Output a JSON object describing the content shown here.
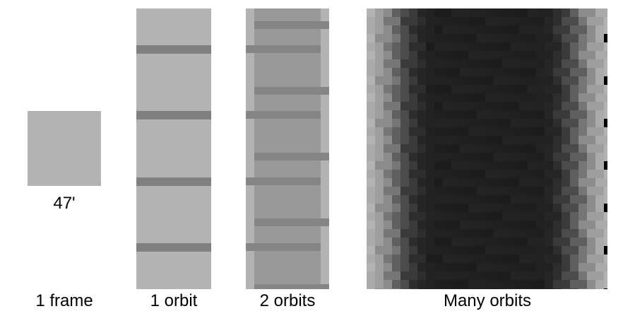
{
  "panels": [
    {
      "id": "frame",
      "label": "1 frame",
      "annotation": "47'"
    },
    {
      "id": "orbit1",
      "label": "1 orbit"
    },
    {
      "id": "orbit2",
      "label": "2 orbits"
    },
    {
      "id": "many",
      "label": "Many orbits"
    }
  ],
  "colors": {
    "light_gray": "#b3b3b3",
    "band_gray": "#808080",
    "overlap_gray": "#999999",
    "dark": "#1f1f1f"
  }
}
